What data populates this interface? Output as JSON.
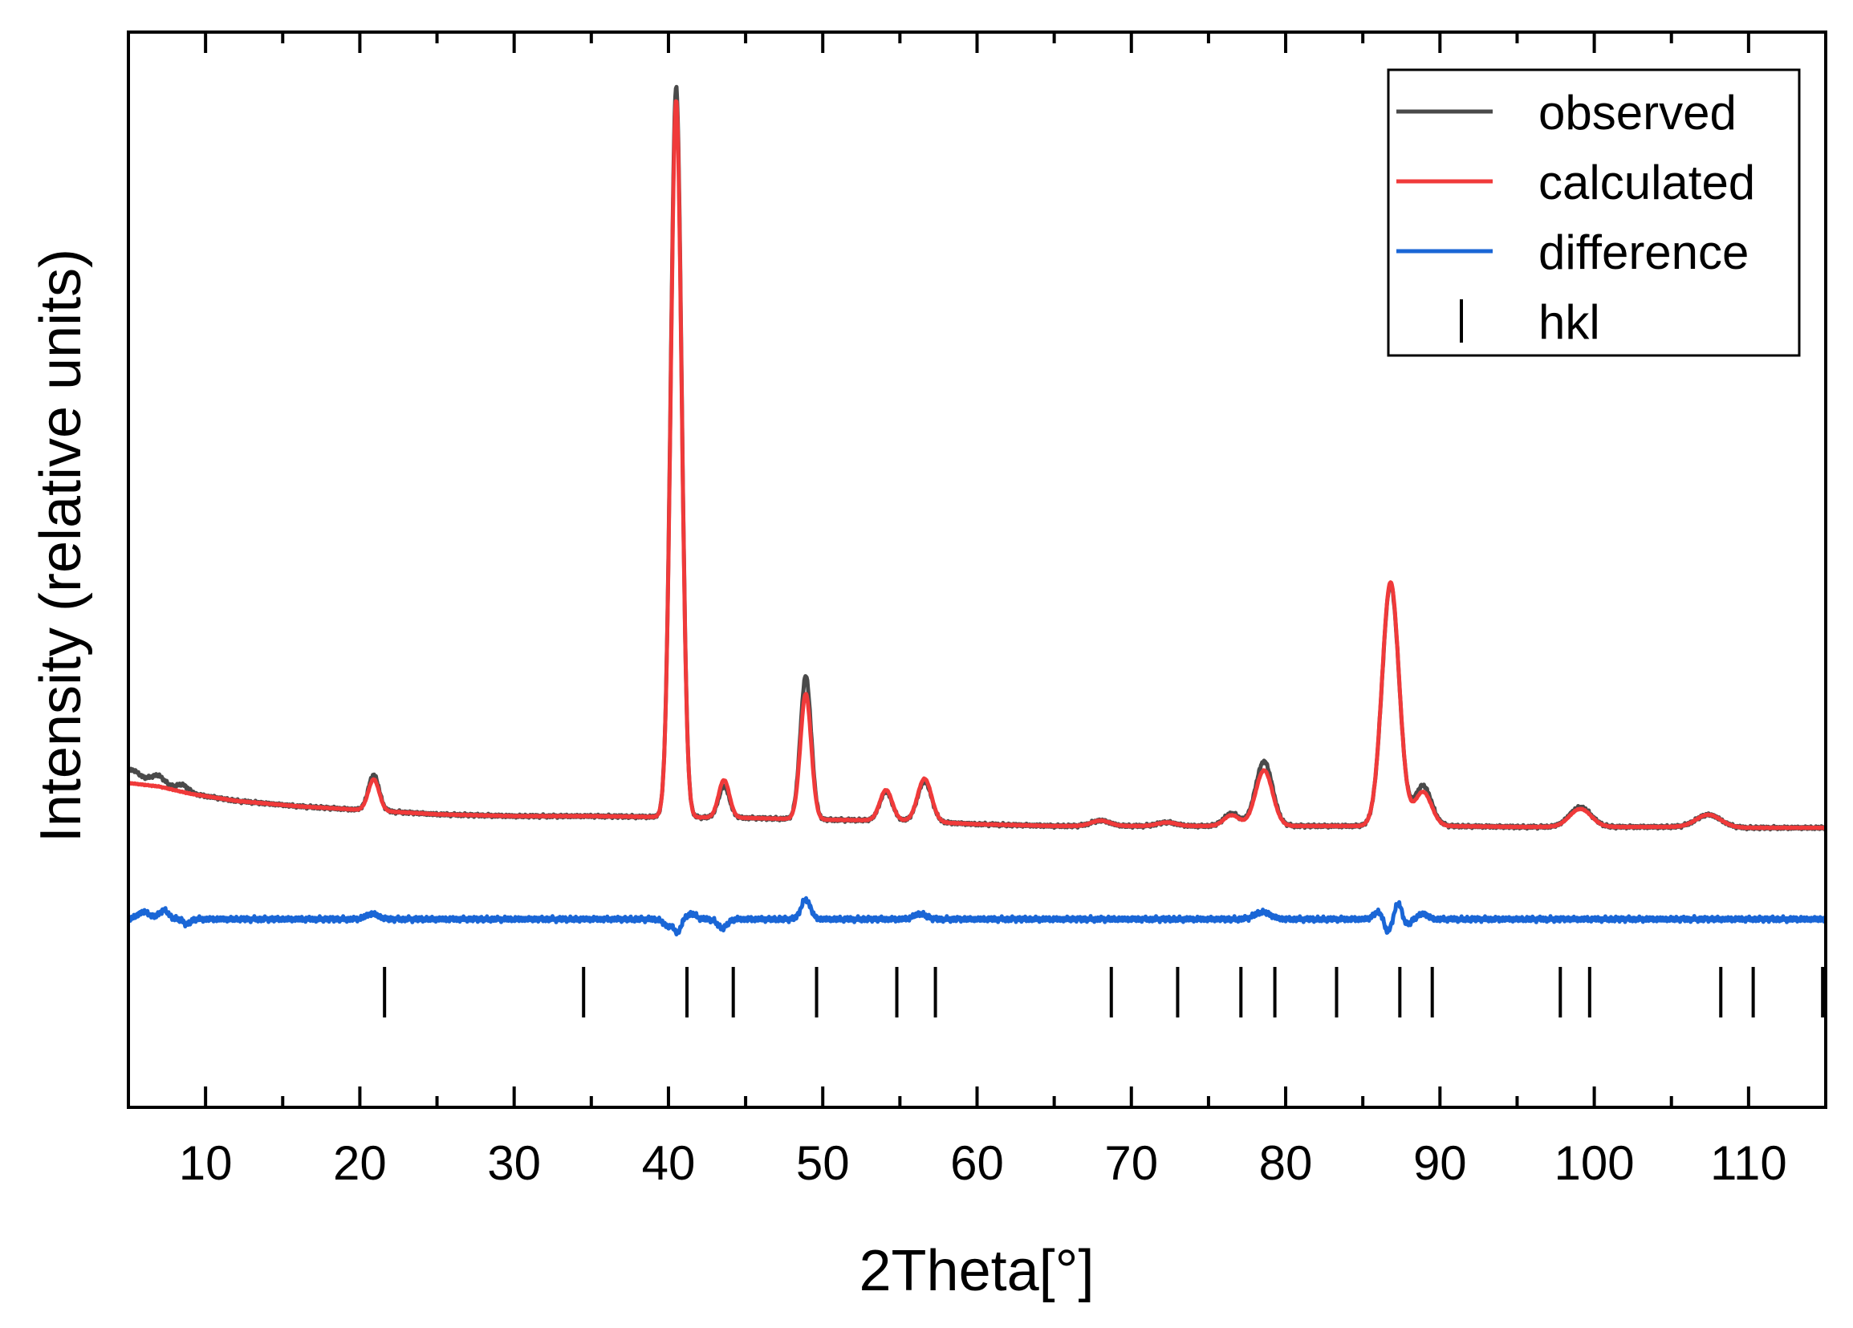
{
  "chart_data": {
    "type": "line",
    "xlabel": "2Theta[°]",
    "ylabel": "Intensity (relative units)",
    "xlim": [
      5,
      115
    ],
    "ylim": [
      -330,
      870
    ],
    "x_major_ticks": [
      10,
      20,
      30,
      40,
      50,
      60,
      70,
      80,
      90,
      100,
      110
    ],
    "x_minor_ticks": [
      5,
      15,
      25,
      35,
      45,
      55,
      65,
      75,
      85,
      95,
      105,
      115
    ],
    "y_ticks_labeled": false,
    "grid": false,
    "legend_position": "top-right",
    "legend": [
      "observed",
      "calculated",
      "difference",
      "hkl"
    ],
    "colors": {
      "observed": "#4a4a4a",
      "calculated": "#f03a3a",
      "difference": "#1a66d6",
      "hkl": "#000000"
    },
    "series": [
      {
        "name": "observed",
        "background": [
          [
            5,
            32
          ],
          [
            7,
            28
          ],
          [
            9,
            20
          ],
          [
            12,
            12
          ],
          [
            16,
            6
          ],
          [
            20,
            2
          ],
          [
            25,
            -3
          ],
          [
            30,
            -5
          ],
          [
            35,
            -5
          ],
          [
            40,
            -6
          ],
          [
            45,
            -7
          ],
          [
            50,
            -9
          ],
          [
            55,
            -10
          ],
          [
            60,
            -14
          ],
          [
            65,
            -16
          ],
          [
            70,
            -16
          ],
          [
            75,
            -16
          ],
          [
            80,
            -16
          ],
          [
            85,
            -16
          ],
          [
            90,
            -16
          ],
          [
            95,
            -17
          ],
          [
            100,
            -17
          ],
          [
            105,
            -17
          ],
          [
            110,
            -18
          ],
          [
            115,
            -18
          ]
        ],
        "peaks": [
          [
            5.2,
            15,
            0.6
          ],
          [
            6.9,
            12,
            0.5
          ],
          [
            8.5,
            8,
            0.4
          ],
          [
            20.9,
            40,
            0.35
          ],
          [
            40.5,
            815,
            0.35
          ],
          [
            43.6,
            35,
            0.35
          ],
          [
            48.9,
            160,
            0.35
          ],
          [
            54.1,
            32,
            0.4
          ],
          [
            56.6,
            45,
            0.45
          ],
          [
            68.0,
            6,
            0.6
          ],
          [
            72.3,
            4,
            0.6
          ],
          [
            76.5,
            14,
            0.5
          ],
          [
            78.6,
            72,
            0.55
          ],
          [
            86.8,
            270,
            0.55
          ],
          [
            88.9,
            45,
            0.55
          ],
          [
            99.1,
            22,
            0.7
          ],
          [
            107.4,
            14,
            0.8
          ]
        ]
      },
      {
        "name": "calculated",
        "background": [
          [
            5,
            32
          ],
          [
            7,
            28
          ],
          [
            9,
            20
          ],
          [
            12,
            12
          ],
          [
            16,
            6
          ],
          [
            20,
            2
          ],
          [
            25,
            -3
          ],
          [
            30,
            -5
          ],
          [
            35,
            -5
          ],
          [
            40,
            -6
          ],
          [
            45,
            -7
          ],
          [
            50,
            -9
          ],
          [
            55,
            -10
          ],
          [
            60,
            -14
          ],
          [
            65,
            -16
          ],
          [
            70,
            -16
          ],
          [
            75,
            -16
          ],
          [
            80,
            -16
          ],
          [
            85,
            -16
          ],
          [
            90,
            -16
          ],
          [
            95,
            -17
          ],
          [
            100,
            -17
          ],
          [
            105,
            -17
          ],
          [
            110,
            -18
          ],
          [
            115,
            -18
          ]
        ],
        "peaks": [
          [
            20.9,
            35,
            0.35
          ],
          [
            40.5,
            800,
            0.35
          ],
          [
            43.6,
            42,
            0.35
          ],
          [
            48.9,
            140,
            0.35
          ],
          [
            54.1,
            34,
            0.4
          ],
          [
            56.6,
            48,
            0.45
          ],
          [
            68.0,
            6,
            0.6
          ],
          [
            72.3,
            4,
            0.6
          ],
          [
            76.5,
            12,
            0.5
          ],
          [
            78.6,
            62,
            0.55
          ],
          [
            86.8,
            272,
            0.55
          ],
          [
            88.9,
            38,
            0.55
          ],
          [
            99.1,
            20,
            0.7
          ],
          [
            107.4,
            14,
            0.8
          ]
        ]
      },
      {
        "name": "difference",
        "baseline": -120,
        "features": [
          [
            6.0,
            8,
            0.4
          ],
          [
            7.3,
            10,
            0.3
          ],
          [
            8.8,
            -6,
            0.2
          ],
          [
            20.8,
            6,
            0.4
          ],
          [
            40.0,
            -8,
            0.3
          ],
          [
            40.6,
            -14,
            0.2
          ],
          [
            41.5,
            6,
            0.3
          ],
          [
            43.5,
            -10,
            0.3
          ],
          [
            48.9,
            22,
            0.3
          ],
          [
            56.3,
            6,
            0.4
          ],
          [
            78.5,
            8,
            0.5
          ],
          [
            86.0,
            8,
            0.3
          ],
          [
            86.6,
            -15,
            0.2
          ],
          [
            87.3,
            18,
            0.2
          ],
          [
            87.9,
            -6,
            0.2
          ],
          [
            88.9,
            6,
            0.3
          ]
        ]
      }
    ],
    "hkl_positions": [
      21.6,
      34.5,
      41.2,
      44.2,
      49.6,
      54.8,
      57.3,
      68.7,
      73.0,
      77.1,
      79.3,
      83.3,
      87.4,
      89.5,
      97.8,
      99.7,
      108.2,
      110.3,
      114.8
    ]
  }
}
